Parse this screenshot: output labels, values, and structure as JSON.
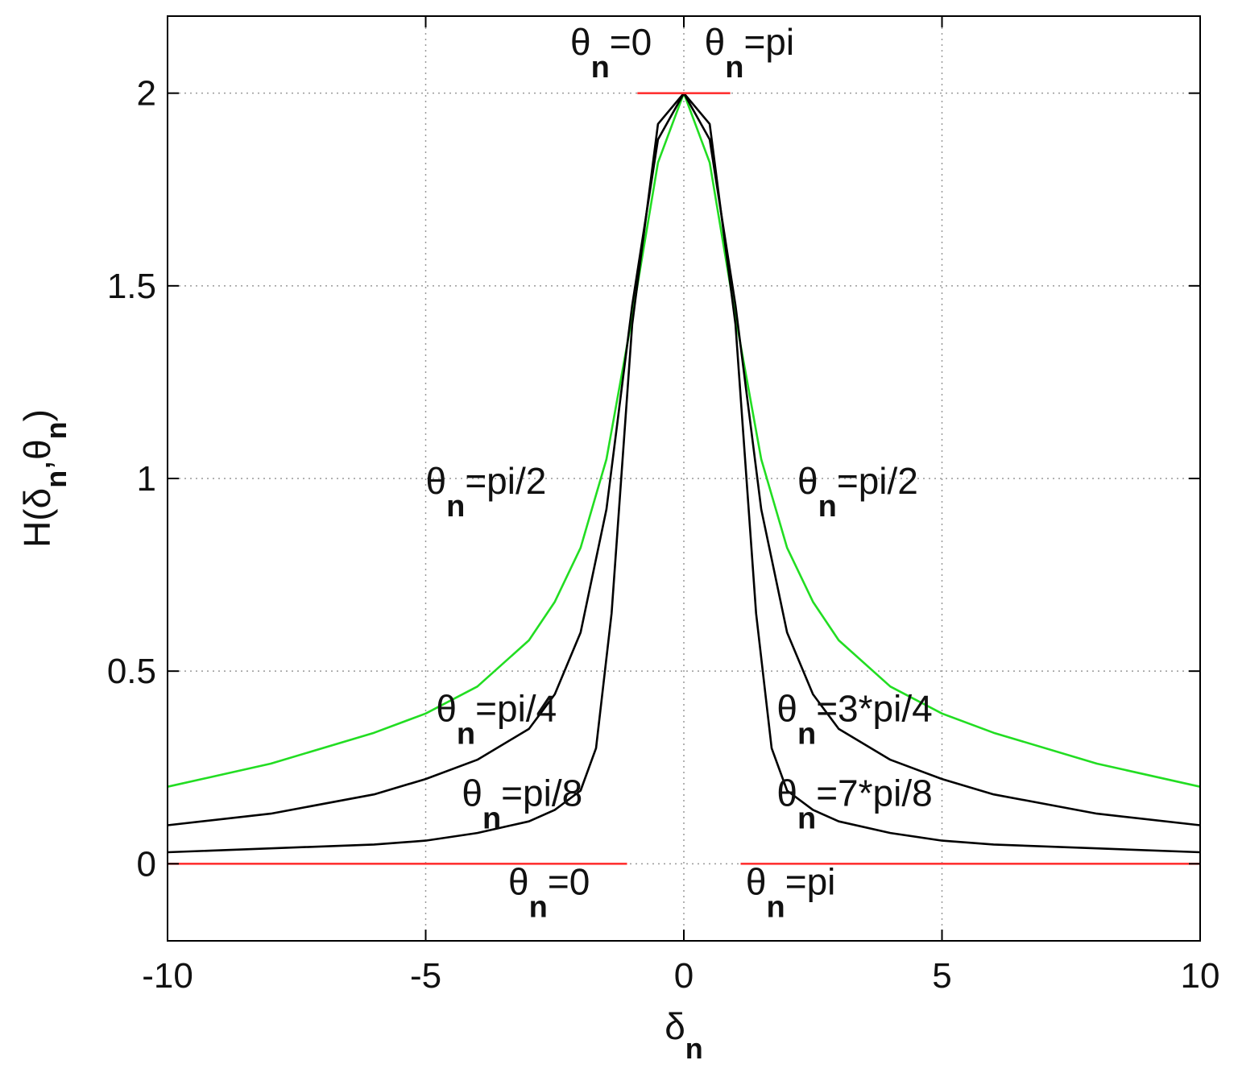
{
  "chart_data": {
    "type": "line",
    "title": "",
    "xlabel": {
      "main": "δ",
      "sub": "n"
    },
    "ylabel": {
      "prefix": "H(δ",
      "sub1": "n",
      "mid": ",θ",
      "sub2": "n",
      "suffix": ")"
    },
    "xlim": [
      -10,
      10
    ],
    "ylim": [
      -0.2,
      2.2
    ],
    "grid": true,
    "xticks": [
      -10,
      -5,
      0,
      5,
      10
    ],
    "xtick_labels": [
      "-10",
      "-5",
      "0",
      "5",
      "10"
    ],
    "yticks": [
      0,
      0.5,
      1,
      1.5,
      2
    ],
    "ytick_labels": [
      "0",
      "0.5",
      "1",
      "1.5",
      "2"
    ],
    "series": [
      {
        "color": "#22dd22",
        "x": [
          -10,
          -8,
          -6,
          -5,
          -4,
          -3,
          -2.5,
          -2,
          -1.5,
          -1,
          -0.5,
          0,
          0.5,
          1,
          1.5,
          2,
          2.5,
          3,
          4,
          5,
          6,
          8,
          10
        ],
        "y": [
          0.2,
          0.26,
          0.34,
          0.39,
          0.46,
          0.58,
          0.68,
          0.82,
          1.05,
          1.42,
          1.82,
          2,
          1.82,
          1.42,
          1.05,
          0.82,
          0.68,
          0.58,
          0.46,
          0.39,
          0.34,
          0.26,
          0.2
        ]
      },
      {
        "color": "#000000",
        "x": [
          -10,
          -8,
          -6,
          -5,
          -4,
          -3,
          -2.5,
          -2,
          -1.5,
          -1,
          -0.5,
          0,
          0.5,
          1,
          1.5,
          2,
          2.5,
          3,
          4,
          5,
          6,
          8,
          10
        ],
        "y": [
          0.1,
          0.13,
          0.18,
          0.22,
          0.27,
          0.35,
          0.44,
          0.6,
          0.92,
          1.45,
          1.88,
          2,
          1.88,
          1.45,
          0.92,
          0.6,
          0.44,
          0.35,
          0.27,
          0.22,
          0.18,
          0.13,
          0.1
        ]
      },
      {
        "color": "#000000",
        "x": [
          -10,
          -8,
          -6,
          -5,
          -4,
          -3,
          -2.5,
          -2,
          -1.7,
          -1.4,
          -1,
          -0.5,
          0,
          0.5,
          1,
          1.4,
          1.7,
          2,
          2.5,
          3,
          4,
          5,
          6,
          8,
          10
        ],
        "y": [
          0.03,
          0.04,
          0.05,
          0.06,
          0.08,
          0.11,
          0.14,
          0.19,
          0.3,
          0.65,
          1.4,
          1.92,
          2,
          1.92,
          1.4,
          0.65,
          0.3,
          0.19,
          0.14,
          0.11,
          0.08,
          0.06,
          0.05,
          0.04,
          0.03
        ]
      },
      {
        "color": "#ff3333",
        "x": [
          -10,
          -1.1
        ],
        "y": [
          0,
          0
        ]
      },
      {
        "color": "#ff3333",
        "x": [
          1.1,
          10
        ],
        "y": [
          0,
          0
        ]
      },
      {
        "color": "#ff3333",
        "x": [
          -0.9,
          0.9
        ],
        "y": [
          2,
          2
        ]
      }
    ],
    "annotations": [
      {
        "text": "θ",
        "sub": "n",
        "rest": "=0",
        "x": -2.2,
        "y": 2.1
      },
      {
        "text": "θ",
        "sub": "n",
        "rest": "=pi",
        "x": 0.4,
        "y": 2.1
      },
      {
        "text": "θ",
        "sub": "n",
        "rest": "=pi/2",
        "x": -5.0,
        "y": 0.96
      },
      {
        "text": "θ",
        "sub": "n",
        "rest": "=pi/2",
        "x": 2.2,
        "y": 0.96
      },
      {
        "text": "θ",
        "sub": "n",
        "rest": "=pi/4",
        "x": -4.8,
        "y": 0.37
      },
      {
        "text": "θ",
        "sub": "n",
        "rest": "=3*pi/4",
        "x": 1.8,
        "y": 0.37
      },
      {
        "text": "θ",
        "sub": "n",
        "rest": "=pi/8",
        "x": -4.3,
        "y": 0.15
      },
      {
        "text": "θ",
        "sub": "n",
        "rest": "=7*pi/8",
        "x": 1.8,
        "y": 0.15
      },
      {
        "text": "θ",
        "sub": "n",
        "rest": "=0",
        "x": -3.4,
        "y": -0.08
      },
      {
        "text": "θ",
        "sub": "n",
        "rest": "=pi",
        "x": 1.2,
        "y": -0.08
      }
    ]
  }
}
